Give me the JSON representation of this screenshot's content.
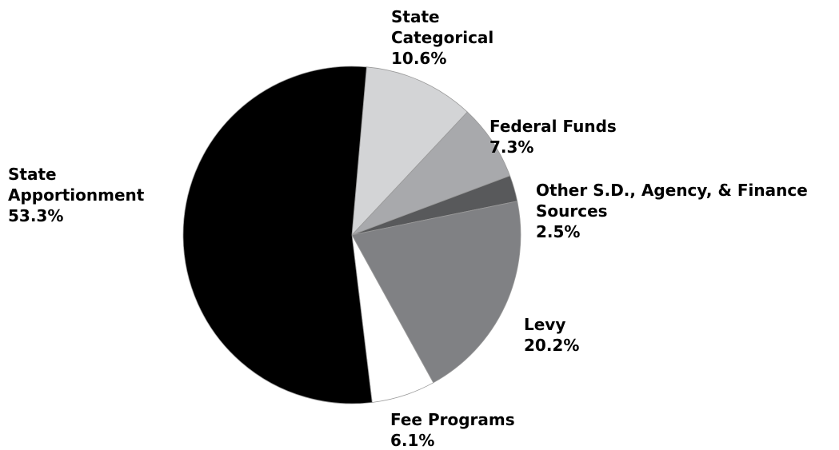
{
  "chart_data": {
    "type": "pie",
    "categories": [
      "State Categorical",
      "Federal Funds",
      "Other S.D., Agency, & Finance Sources",
      "Levy",
      "Fee Programs",
      "State Apportionment"
    ],
    "values": [
      10.6,
      7.3,
      2.5,
      20.2,
      6.1,
      53.3
    ],
    "value_labels": [
      "10.6%",
      "7.3%",
      "2.5%",
      "20.2%",
      "6.1%",
      "53.3%"
    ],
    "colors": [
      "#d3d4d6",
      "#a8a9ac",
      "#58595b",
      "#808184",
      "#ffffff",
      "#000000"
    ]
  }
}
